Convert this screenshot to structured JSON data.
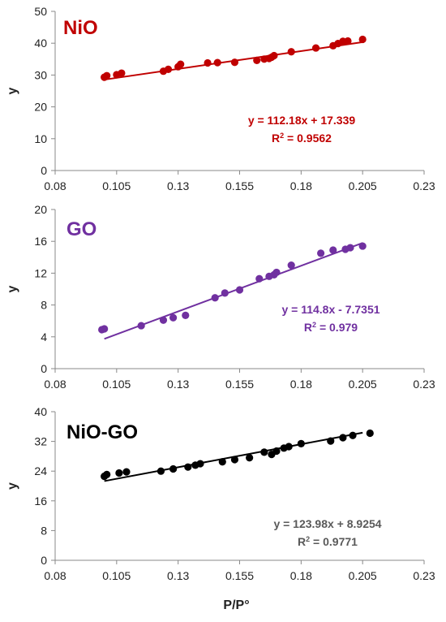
{
  "chart_data": [
    {
      "type": "scatter",
      "title": "NiO",
      "color": "#C00000",
      "ylabel": "y",
      "xlabel": "",
      "xlim": [
        0.08,
        0.23
      ],
      "ylim": [
        0,
        50
      ],
      "x_ticks": [
        "0.08",
        "0.105",
        "0.13",
        "0.155",
        "0.18",
        "0.205",
        "0.23"
      ],
      "y_ticks": [
        "0",
        "10",
        "20",
        "30",
        "40",
        "50"
      ],
      "grid": false,
      "trendline": {
        "slope": 112.18,
        "intercept": 17.339,
        "x_range": [
          0.1,
          0.205
        ]
      },
      "equation": "y = 112.18x + 17.339",
      "r2_prefix": "R",
      "r2_sup": "2",
      "r2_value": " = 0.9562",
      "points": [
        [
          0.1,
          29.3
        ],
        [
          0.101,
          29.8
        ],
        [
          0.105,
          30.1
        ],
        [
          0.107,
          30.6
        ],
        [
          0.124,
          31.2
        ],
        [
          0.126,
          31.8
        ],
        [
          0.13,
          32.6
        ],
        [
          0.131,
          33.4
        ],
        [
          0.142,
          33.8
        ],
        [
          0.146,
          33.9
        ],
        [
          0.153,
          34.0
        ],
        [
          0.162,
          34.6
        ],
        [
          0.165,
          35.0
        ],
        [
          0.167,
          35.2
        ],
        [
          0.168,
          35.6
        ],
        [
          0.169,
          36.1
        ],
        [
          0.176,
          37.3
        ],
        [
          0.186,
          38.5
        ],
        [
          0.193,
          39.2
        ],
        [
          0.195,
          39.9
        ],
        [
          0.197,
          40.6
        ],
        [
          0.199,
          40.7
        ],
        [
          0.205,
          41.2
        ]
      ]
    },
    {
      "type": "scatter",
      "title": "GO",
      "color": "#7030A0",
      "ylabel": "y",
      "xlabel": "",
      "xlim": [
        0.08,
        0.23
      ],
      "ylim": [
        0,
        20
      ],
      "x_ticks": [
        "0.08",
        "0.105",
        "0.13",
        "0.155",
        "0.18",
        "0.205",
        "0.23"
      ],
      "y_ticks": [
        "0",
        "4",
        "8",
        "12",
        "16",
        "20"
      ],
      "grid": false,
      "trendline": {
        "slope": 114.8,
        "intercept": -7.7351,
        "x_range": [
          0.1,
          0.205
        ]
      },
      "equation": "y = 114.8x - 7.7351",
      "r2_prefix": "R",
      "r2_sup": "2",
      "r2_value": " = 0.979",
      "points": [
        [
          0.099,
          4.9
        ],
        [
          0.1,
          5.0
        ],
        [
          0.115,
          5.4
        ],
        [
          0.124,
          6.1
        ],
        [
          0.128,
          6.4
        ],
        [
          0.133,
          6.7
        ],
        [
          0.145,
          8.9
        ],
        [
          0.149,
          9.5
        ],
        [
          0.155,
          9.9
        ],
        [
          0.163,
          11.3
        ],
        [
          0.167,
          11.6
        ],
        [
          0.169,
          11.8
        ],
        [
          0.17,
          12.1
        ],
        [
          0.176,
          13.0
        ],
        [
          0.188,
          14.5
        ],
        [
          0.193,
          14.9
        ],
        [
          0.198,
          15.0
        ],
        [
          0.2,
          15.2
        ],
        [
          0.205,
          15.4
        ]
      ]
    },
    {
      "type": "scatter",
      "title": "NiO-GO",
      "color": "#000000",
      "eq_color": "#595959",
      "ylabel": "y",
      "xlabel": "P/P°",
      "xlim": [
        0.08,
        0.23
      ],
      "ylim": [
        0,
        40
      ],
      "x_ticks": [
        "0.08",
        "0.105",
        "0.13",
        "0.155",
        "0.18",
        "0.205",
        "0.23"
      ],
      "y_ticks": [
        "0",
        "8",
        "16",
        "24",
        "32",
        "40"
      ],
      "grid": false,
      "trendline": {
        "slope": 123.98,
        "intercept": 8.9254,
        "x_range": [
          0.1,
          0.205
        ]
      },
      "equation": "y = 123.98x + 8.9254",
      "r2_prefix": "R",
      "r2_sup": "2",
      "r2_value": " = 0.9771",
      "points": [
        [
          0.1,
          22.6
        ],
        [
          0.101,
          23.1
        ],
        [
          0.106,
          23.5
        ],
        [
          0.109,
          23.8
        ],
        [
          0.123,
          24.0
        ],
        [
          0.128,
          24.6
        ],
        [
          0.134,
          25.1
        ],
        [
          0.137,
          25.6
        ],
        [
          0.139,
          26.0
        ],
        [
          0.148,
          26.5
        ],
        [
          0.153,
          27.1
        ],
        [
          0.159,
          27.6
        ],
        [
          0.165,
          29.1
        ],
        [
          0.168,
          28.5
        ],
        [
          0.17,
          29.4
        ],
        [
          0.173,
          30.2
        ],
        [
          0.175,
          30.6
        ],
        [
          0.18,
          31.4
        ],
        [
          0.192,
          32.1
        ],
        [
          0.197,
          33.0
        ],
        [
          0.201,
          33.6
        ],
        [
          0.208,
          34.2
        ]
      ]
    }
  ]
}
